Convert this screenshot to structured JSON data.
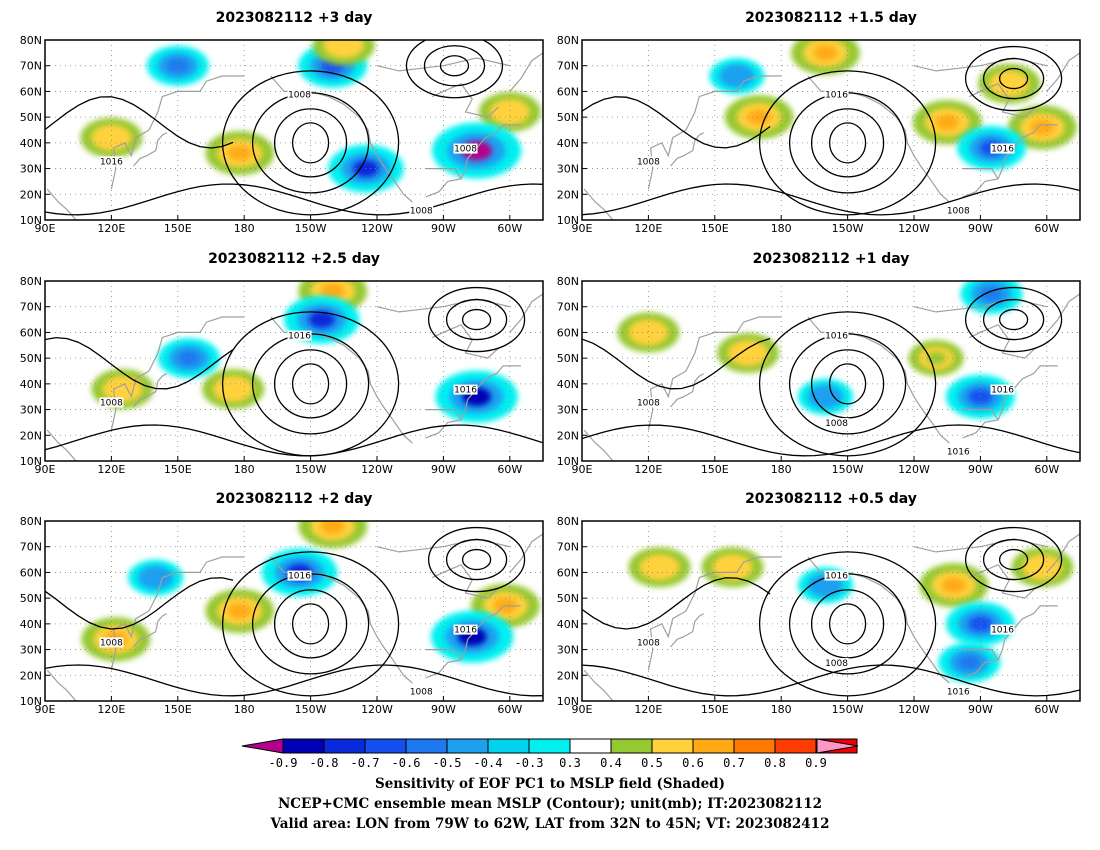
{
  "panels": [
    {
      "title": "2023082112 +3 day",
      "contour_labels": [
        "1008",
        "1016",
        "1008",
        "1008"
      ]
    },
    {
      "title": "2023082112 +1.5 day",
      "contour_labels": [
        "1016",
        "1008",
        "1016",
        "1008"
      ]
    },
    {
      "title": "2023082112 +2.5 day",
      "contour_labels": [
        "1016",
        "1008",
        "1016"
      ]
    },
    {
      "title": "2023082112 +1 day",
      "contour_labels": [
        "1016",
        "1008",
        "1016",
        "1016",
        "1008"
      ]
    },
    {
      "title": "2023082112 +2 day",
      "contour_labels": [
        "1016",
        "1008",
        "1016",
        "1008"
      ]
    },
    {
      "title": "2023082112 +0.5 day",
      "contour_labels": [
        "1016",
        "1008",
        "1016",
        "1016",
        "1008"
      ]
    }
  ],
  "axes": {
    "x_ticks": [
      "90E",
      "120E",
      "150E",
      "180",
      "150W",
      "120W",
      "90W",
      "60W"
    ],
    "y_ticks": [
      "80N",
      "70N",
      "60N",
      "50N",
      "40N",
      "30N",
      "20N",
      "10N"
    ]
  },
  "colorbar": {
    "ticks": [
      "-0.9",
      "-0.8",
      "-0.7",
      "-0.6",
      "-0.5",
      "-0.4",
      "-0.3",
      "0.3",
      "0.4",
      "0.5",
      "0.6",
      "0.7",
      "0.8",
      "0.9"
    ],
    "colors": [
      "#b4008c",
      "#0000b4",
      "#0a28dc",
      "#1450f0",
      "#1e78f0",
      "#1ea0f0",
      "#00d2f0",
      "#00f0f0",
      "#ffffff",
      "#96c832",
      "#ffd23c",
      "#ffaa14",
      "#ff7800",
      "#ff3c00",
      "#f00000",
      "#ff96c8"
    ]
  },
  "caption": {
    "line1": "Sensitivity of EOF PC1 to MSLP field (Shaded)",
    "line2": "NCEP+CMC ensemble mean MSLP (Contour); unit(mb); IT:2023082112",
    "line3": "Valid area: LON from 79W to 62W, LAT from 32N to 45N; VT: 2023082412"
  },
  "chart_data": [
    {
      "type": "heatmap",
      "title": "2023082112 +3 day",
      "x_range": [
        "90E",
        "45W"
      ],
      "y_range": [
        "10N",
        "80N"
      ],
      "shading": "Sensitivity of EOF PC1 to MSLP",
      "contour_field": "MSLP (mb)",
      "features": [
        {
          "kind": "positive",
          "lon": 178,
          "lat": 36,
          "level": 0.6
        },
        {
          "kind": "positive",
          "lon": 120,
          "lat": 42,
          "level": 0.5
        },
        {
          "kind": "positive",
          "lon": 300,
          "lat": 52,
          "level": 0.5
        },
        {
          "kind": "negative",
          "lon": 285,
          "lat": 37,
          "level": -0.9
        },
        {
          "kind": "negative",
          "lon": 235,
          "lat": 30,
          "level": -0.7
        },
        {
          "kind": "negative",
          "lon": 220,
          "lat": 70,
          "level": -0.6
        },
        {
          "kind": "negative",
          "lon": 150,
          "lat": 70,
          "level": -0.5
        },
        {
          "kind": "positive",
          "lon": 225,
          "lat": 78,
          "level": 0.5
        }
      ],
      "highs": [
        {
          "lon": 210,
          "lat": 40
        }
      ],
      "lows": [
        {
          "lon": 275,
          "lat": 70
        }
      ]
    },
    {
      "type": "heatmap",
      "title": "2023082112 +1.5 day",
      "x_range": [
        "90E",
        "45W"
      ],
      "y_range": [
        "10N",
        "80N"
      ],
      "shading": "Sensitivity of EOF PC1 to MSLP",
      "contour_field": "MSLP (mb)",
      "features": [
        {
          "kind": "positive",
          "lon": 170,
          "lat": 50,
          "level": 0.6
        },
        {
          "kind": "positive",
          "lon": 200,
          "lat": 75,
          "level": 0.6
        },
        {
          "kind": "positive",
          "lon": 255,
          "lat": 48,
          "level": 0.6
        },
        {
          "kind": "positive",
          "lon": 298,
          "lat": 46,
          "level": 0.6
        },
        {
          "kind": "positive",
          "lon": 283,
          "lat": 63,
          "level": 0.5
        },
        {
          "kind": "negative",
          "lon": 275,
          "lat": 38,
          "level": -0.6
        },
        {
          "kind": "negative",
          "lon": 160,
          "lat": 66,
          "level": -0.4
        }
      ],
      "highs": [
        {
          "lon": 210,
          "lat": 40
        }
      ],
      "lows": [
        {
          "lon": 285,
          "lat": 65
        }
      ]
    },
    {
      "type": "heatmap",
      "title": "2023082112 +2.5 day",
      "x_range": [
        "90E",
        "45W"
      ],
      "y_range": [
        "10N",
        "80N"
      ],
      "shading": "Sensitivity of EOF PC1 to MSLP",
      "contour_field": "MSLP (mb)",
      "features": [
        {
          "kind": "positive",
          "lon": 175,
          "lat": 38,
          "level": 0.5
        },
        {
          "kind": "positive",
          "lon": 220,
          "lat": 76,
          "level": 0.6
        },
        {
          "kind": "positive",
          "lon": 125,
          "lat": 38,
          "level": 0.5
        },
        {
          "kind": "negative",
          "lon": 215,
          "lat": 65,
          "level": -0.7
        },
        {
          "kind": "negative",
          "lon": 285,
          "lat": 35,
          "level": -0.8
        },
        {
          "kind": "negative",
          "lon": 155,
          "lat": 50,
          "level": -0.5
        }
      ],
      "highs": [
        {
          "lon": 210,
          "lat": 40
        }
      ],
      "lows": [
        {
          "lon": 285,
          "lat": 65
        }
      ]
    },
    {
      "type": "heatmap",
      "title": "2023082112 +1 day",
      "x_range": [
        "90E",
        "45W"
      ],
      "y_range": [
        "10N",
        "80N"
      ],
      "shading": "Sensitivity of EOF PC1 to MSLP",
      "contour_field": "MSLP (mb)",
      "features": [
        {
          "kind": "positive",
          "lon": 120,
          "lat": 60,
          "level": 0.5
        },
        {
          "kind": "positive",
          "lon": 165,
          "lat": 52,
          "level": 0.5
        },
        {
          "kind": "negative",
          "lon": 270,
          "lat": 35,
          "level": -0.6
        },
        {
          "kind": "negative",
          "lon": 275,
          "lat": 75,
          "level": -0.5
        },
        {
          "kind": "negative",
          "lon": 200,
          "lat": 35,
          "level": -0.4
        },
        {
          "kind": "positive",
          "lon": 250,
          "lat": 50,
          "level": 0.4
        }
      ],
      "highs": [
        {
          "lon": 210,
          "lat": 40
        }
      ],
      "lows": [
        {
          "lon": 285,
          "lat": 65
        }
      ]
    },
    {
      "type": "heatmap",
      "title": "2023082112 +2 day",
      "x_range": [
        "90E",
        "45W"
      ],
      "y_range": [
        "10N",
        "80N"
      ],
      "shading": "Sensitivity of EOF PC1 to MSLP",
      "contour_field": "MSLP (mb)",
      "features": [
        {
          "kind": "positive",
          "lon": 178,
          "lat": 45,
          "level": 0.6
        },
        {
          "kind": "positive",
          "lon": 220,
          "lat": 78,
          "level": 0.6
        },
        {
          "kind": "positive",
          "lon": 298,
          "lat": 47,
          "level": 0.6
        },
        {
          "kind": "positive",
          "lon": 122,
          "lat": 34,
          "level": 0.6
        },
        {
          "kind": "negative",
          "lon": 283,
          "lat": 35,
          "level": -0.8
        },
        {
          "kind": "negative",
          "lon": 205,
          "lat": 60,
          "level": -0.7
        },
        {
          "kind": "negative",
          "lon": 140,
          "lat": 58,
          "level": -0.4
        }
      ],
      "highs": [
        {
          "lon": 210,
          "lat": 40
        }
      ],
      "lows": [
        {
          "lon": 285,
          "lat": 65
        }
      ]
    },
    {
      "type": "heatmap",
      "title": "2023082112 +0.5 day",
      "x_range": [
        "90E",
        "45W"
      ],
      "y_range": [
        "10N",
        "80N"
      ],
      "shading": "Sensitivity of EOF PC1 to MSLP",
      "contour_field": "MSLP (mb)",
      "features": [
        {
          "kind": "positive",
          "lon": 125,
          "lat": 62,
          "level": 0.5
        },
        {
          "kind": "positive",
          "lon": 258,
          "lat": 55,
          "level": 0.6
        },
        {
          "kind": "positive",
          "lon": 298,
          "lat": 62,
          "level": 0.5
        },
        {
          "kind": "positive",
          "lon": 158,
          "lat": 62,
          "level": 0.5
        },
        {
          "kind": "negative",
          "lon": 270,
          "lat": 40,
          "level": -0.6
        },
        {
          "kind": "negative",
          "lon": 265,
          "lat": 25,
          "level": -0.5
        },
        {
          "kind": "negative",
          "lon": 200,
          "lat": 55,
          "level": -0.4
        }
      ],
      "highs": [
        {
          "lon": 210,
          "lat": 40
        }
      ],
      "lows": [
        {
          "lon": 285,
          "lat": 65
        }
      ]
    }
  ]
}
